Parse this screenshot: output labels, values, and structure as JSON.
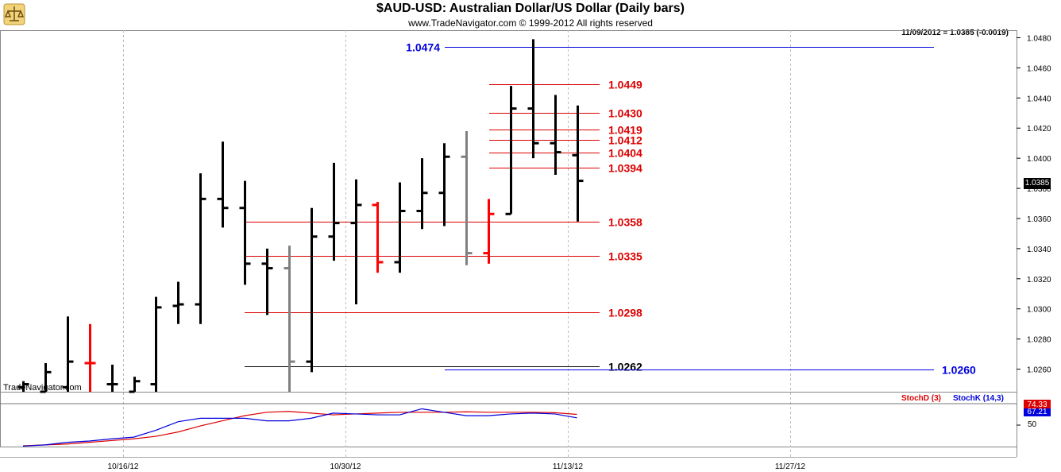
{
  "header": {
    "title": "$AUD-USD:  Australian Dollar/US Dollar  (Daily bars)",
    "subtitle": "www.TradeNavigator.com © 1999-2012 All rights reserved",
    "quote": "11/09/2012 = 1.0385 (-0.0019)",
    "watermark": "TradeNavigator.com",
    "last_price": "1.0385",
    "stoch_d_label": "StochD (3)",
    "stoch_k_label": "StochK (14,3)",
    "stoch_d_value": "74.33",
    "stoch_k_value": "67.21",
    "stoch_level": "50"
  },
  "colors": {
    "up_bar": "#000000",
    "down_bar": "#ff0000",
    "neutral_bar": "#808080",
    "resistance": "#dd0000",
    "support": "#000000",
    "target": "#0000dd",
    "stoch_d": "#dd0000",
    "stoch_k": "#0000dd"
  },
  "chart_data": {
    "type": "ohlc",
    "ylim": [
      1.0245,
      1.0485
    ],
    "y_ticks": [
      "1.0480",
      "1.0460",
      "1.0440",
      "1.0420",
      "1.0400",
      "1.0380",
      "1.0360",
      "1.0340",
      "1.0320",
      "1.0300",
      "1.0280",
      "1.0260"
    ],
    "x_ticks": [
      "10/16/12",
      "10/30/12",
      "11/13/12",
      "11/27/12"
    ],
    "bars": [
      {
        "o": 1.0248,
        "h": 1.0252,
        "l": 1.0245,
        "c": 1.025,
        "color": "black"
      },
      {
        "o": 1.0245,
        "h": 1.0264,
        "l": 1.0245,
        "c": 1.0258,
        "color": "black"
      },
      {
        "o": 1.0248,
        "h": 1.0295,
        "l": 1.0245,
        "c": 1.0265,
        "color": "black"
      },
      {
        "o": 1.0264,
        "h": 1.029,
        "l": 1.0245,
        "c": 1.0264,
        "color": "red"
      },
      {
        "o": 1.025,
        "h": 1.0263,
        "l": 1.0245,
        "c": 1.025,
        "color": "black"
      },
      {
        "o": 1.0245,
        "h": 1.0255,
        "l": 1.0245,
        "c": 1.0252,
        "color": "black"
      },
      {
        "o": 1.025,
        "h": 1.0308,
        "l": 1.0245,
        "c": 1.0301,
        "color": "black"
      },
      {
        "o": 1.0302,
        "h": 1.0318,
        "l": 1.029,
        "c": 1.0303,
        "color": "black"
      },
      {
        "o": 1.0303,
        "h": 1.039,
        "l": 1.029,
        "c": 1.0373,
        "color": "black"
      },
      {
        "o": 1.0373,
        "h": 1.0411,
        "l": 1.0354,
        "c": 1.0367,
        "color": "black"
      },
      {
        "o": 1.0367,
        "h": 1.0385,
        "l": 1.0316,
        "c": 1.033,
        "color": "black"
      },
      {
        "o": 1.033,
        "h": 1.034,
        "l": 1.0296,
        "c": 1.0327,
        "color": "black"
      },
      {
        "o": 1.0327,
        "h": 1.0342,
        "l": 1.0245,
        "c": 1.0265,
        "color": "gray"
      },
      {
        "o": 1.0265,
        "h": 1.0367,
        "l": 1.0258,
        "c": 1.0348,
        "color": "black"
      },
      {
        "o": 1.0348,
        "h": 1.0397,
        "l": 1.0332,
        "c": 1.0357,
        "color": "black"
      },
      {
        "o": 1.0357,
        "h": 1.0386,
        "l": 1.0303,
        "c": 1.0369,
        "color": "black"
      },
      {
        "o": 1.0369,
        "h": 1.0371,
        "l": 1.0324,
        "c": 1.0331,
        "color": "red"
      },
      {
        "o": 1.0331,
        "h": 1.0384,
        "l": 1.0324,
        "c": 1.0365,
        "color": "black"
      },
      {
        "o": 1.0365,
        "h": 1.04,
        "l": 1.0353,
        "c": 1.0377,
        "color": "black"
      },
      {
        "o": 1.0377,
        "h": 1.041,
        "l": 1.0355,
        "c": 1.0401,
        "color": "black"
      },
      {
        "o": 1.0401,
        "h": 1.0418,
        "l": 1.0329,
        "c": 1.0337,
        "color": "gray"
      },
      {
        "o": 1.0337,
        "h": 1.0373,
        "l": 1.033,
        "c": 1.0363,
        "color": "red"
      },
      {
        "o": 1.0363,
        "h": 1.0448,
        "l": 1.0363,
        "c": 1.0433,
        "color": "black"
      },
      {
        "o": 1.0433,
        "h": 1.0479,
        "l": 1.04,
        "c": 1.041,
        "color": "black"
      },
      {
        "o": 1.041,
        "h": 1.0442,
        "l": 1.0389,
        "c": 1.0404,
        "color": "black"
      },
      {
        "o": 1.0402,
        "h": 1.0435,
        "l": 1.0358,
        "c": 1.0385,
        "color": "black"
      }
    ],
    "levels": [
      {
        "label": "1.0474",
        "value": 1.0474,
        "color": "blue"
      },
      {
        "label": "1.0449",
        "value": 1.0449,
        "color": "red"
      },
      {
        "label": "1.0430",
        "value": 1.043,
        "color": "red"
      },
      {
        "label": "1.0419",
        "value": 1.0419,
        "color": "red"
      },
      {
        "label": "1.0412",
        "value": 1.0412,
        "color": "red"
      },
      {
        "label": "1.0404",
        "value": 1.0404,
        "color": "red"
      },
      {
        "label": "1.0394",
        "value": 1.0394,
        "color": "red"
      },
      {
        "label": "1.0358",
        "value": 1.0358,
        "color": "red"
      },
      {
        "label": "1.0335",
        "value": 1.0335,
        "color": "red"
      },
      {
        "label": "1.0298",
        "value": 1.0298,
        "color": "red"
      },
      {
        "label": "1.0262",
        "value": 1.0262,
        "color": "black"
      },
      {
        "label": "1.0260",
        "value": 1.026,
        "color": "blue"
      }
    ],
    "stoch_ylim": [
      0,
      100
    ],
    "stoch_d": [
      2,
      4,
      6,
      10,
      14,
      18,
      24,
      34,
      48,
      60,
      72,
      80,
      82,
      78,
      74,
      76,
      78,
      80,
      80,
      80,
      81,
      80,
      80,
      80,
      79,
      75
    ],
    "stoch_k": [
      1,
      4,
      10,
      13,
      18,
      22,
      38,
      58,
      66,
      66,
      66,
      60,
      60,
      66,
      78,
      76,
      74,
      74,
      88,
      80,
      72,
      72,
      76,
      78,
      76,
      67
    ]
  }
}
